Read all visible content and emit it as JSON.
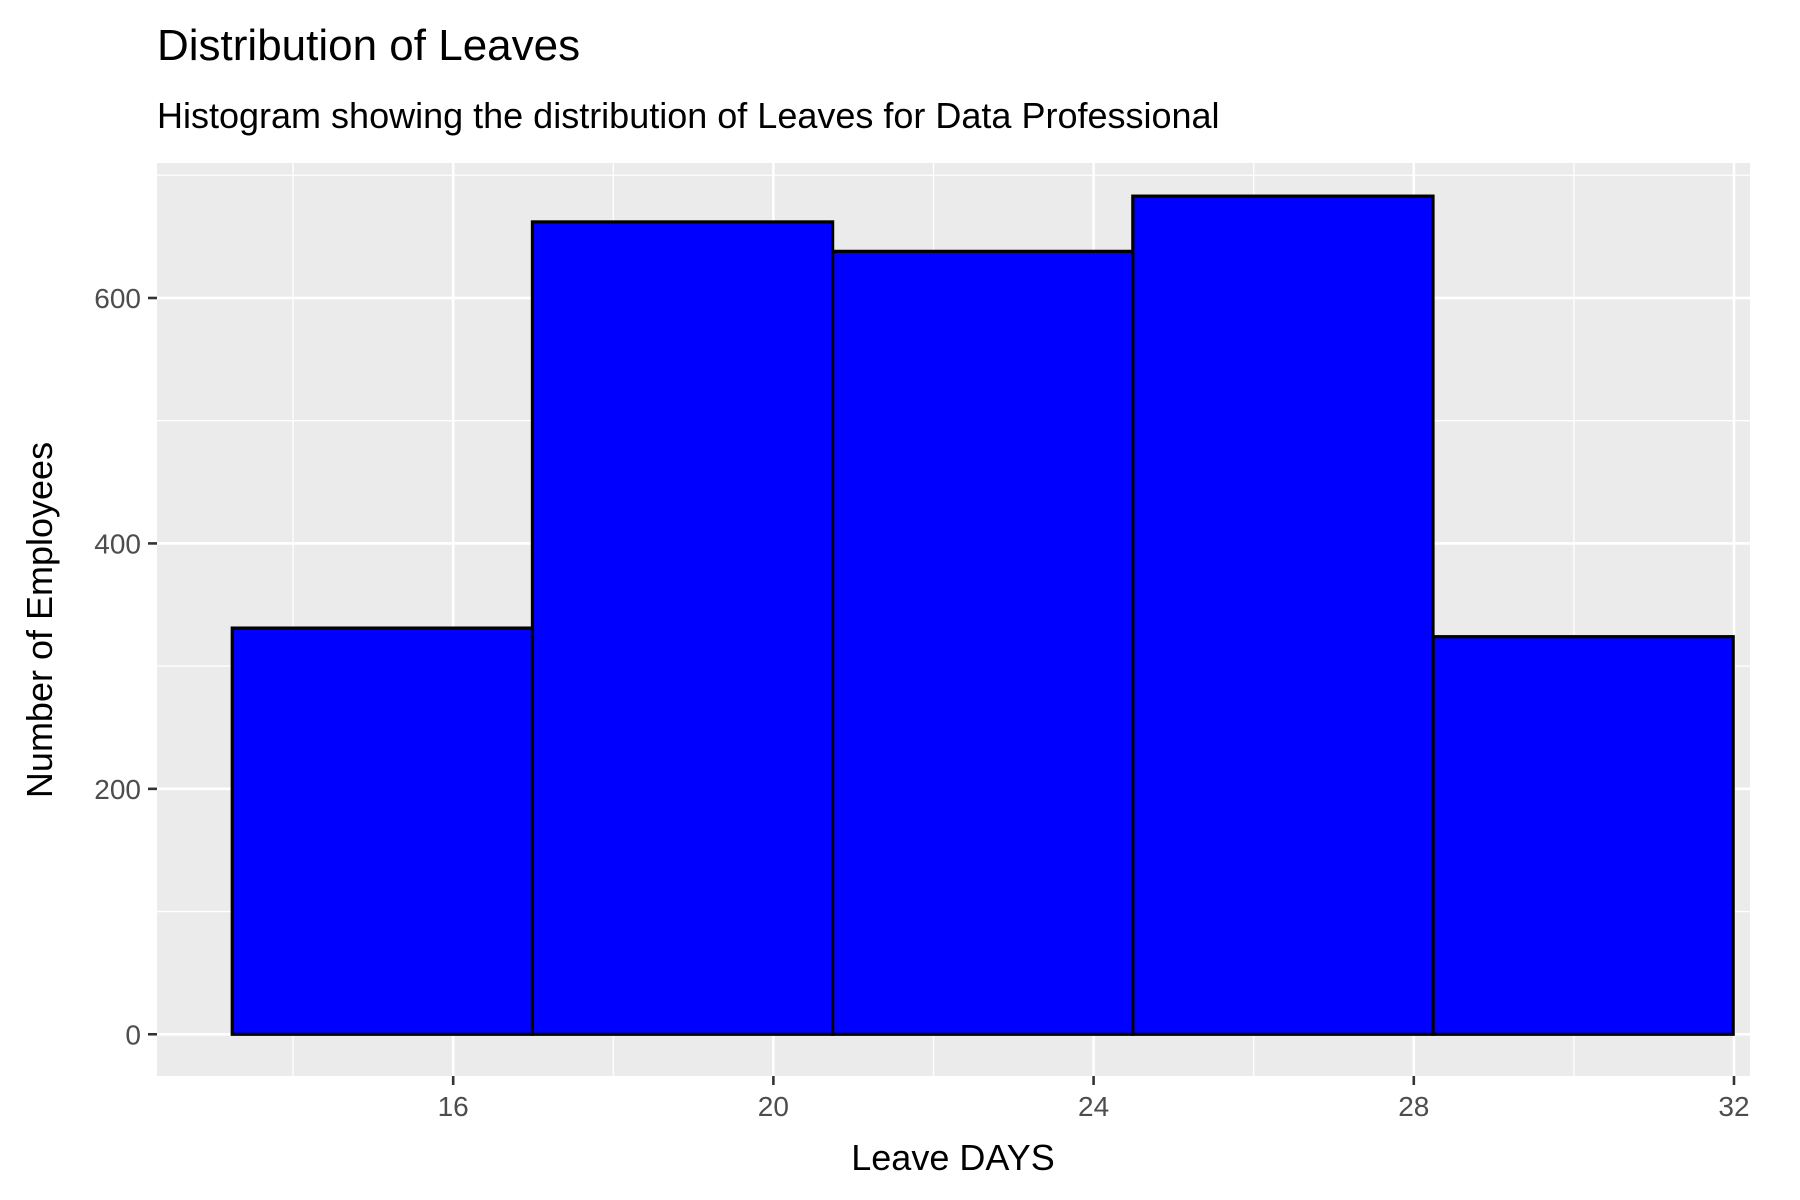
{
  "chart_data": {
    "type": "bar",
    "histogram": true,
    "title": "Distribution of Leaves",
    "subtitle": "Histogram showing the distribution of Leaves for Data Professional",
    "xlabel": "Leave DAYS",
    "ylabel": "Number of Employees",
    "bins": [
      {
        "start": 13.24,
        "end": 16.99,
        "count": 331
      },
      {
        "start": 16.99,
        "end": 20.74,
        "count": 662
      },
      {
        "start": 20.74,
        "end": 24.49,
        "count": 638
      },
      {
        "start": 24.49,
        "end": 28.24,
        "count": 683
      },
      {
        "start": 28.24,
        "end": 31.99,
        "count": 324
      }
    ],
    "xlim": [
      12.3,
      32.2
    ],
    "ylim": [
      -34,
      710
    ],
    "x_ticks": [
      16,
      20,
      24,
      28,
      32
    ],
    "y_ticks": [
      0,
      200,
      400,
      600
    ],
    "bar_fill": "#0000ff",
    "bar_outline": "#000000",
    "panel_background": "#ebebeb",
    "grid": true,
    "legend": "none"
  }
}
